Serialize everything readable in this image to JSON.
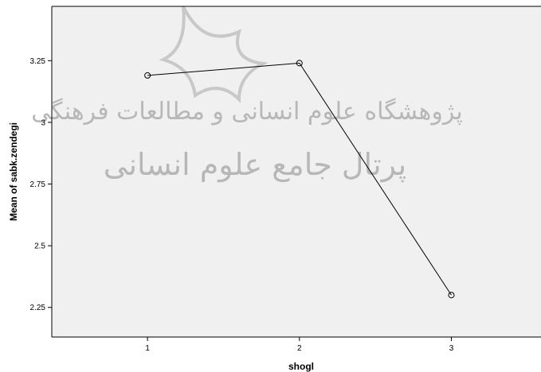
{
  "chart_data": {
    "type": "line",
    "x": [
      1,
      2,
      3
    ],
    "categories": [
      "1",
      "2",
      "3"
    ],
    "values": [
      3.19,
      3.24,
      2.3
    ],
    "xlabel": "shogl",
    "ylabel": "Mean of sabk.zendegi",
    "ylim": [
      2.13,
      3.47
    ],
    "xlim": [
      0.37,
      3.59
    ],
    "yticks": [
      2.25,
      2.5,
      2.75,
      3,
      3.25
    ],
    "ytick_labels": [
      "2.25",
      "2.5",
      "2.75",
      "3",
      "3.25"
    ],
    "xticks": [
      1,
      2,
      3
    ],
    "grid": false,
    "legend": "none",
    "marker": "open-circle"
  },
  "watermark": {
    "line1": "پژوهشگاه علوم انسانی و مطالعات فرهنگی",
    "line2": "پرتال جامع علوم انسانی"
  },
  "colors": {
    "plot_background": "#f0f0f0",
    "line": "#000000",
    "watermark": "#b7b7b7"
  }
}
